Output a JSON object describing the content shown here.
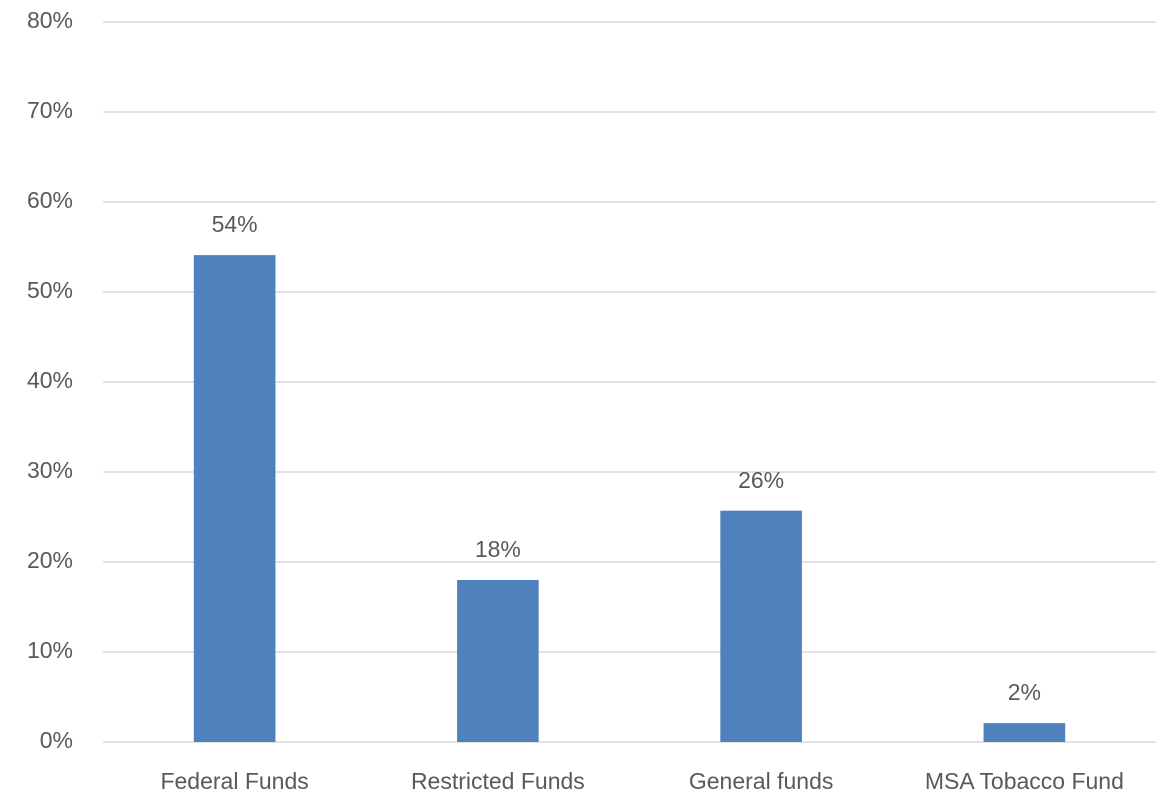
{
  "chart_data": {
    "type": "bar",
    "categories": [
      "Federal Funds",
      "Restricted Funds",
      "General funds",
      "MSA Tobacco Fund"
    ],
    "values": [
      54.1,
      18,
      25.7,
      2.1
    ],
    "value_labels": [
      "54%",
      "18%",
      "26%",
      "2%"
    ],
    "color": "#4f81bd",
    "ylim": [
      0,
      80
    ],
    "yticks": [
      {
        "value": 0,
        "label": "0%"
      },
      {
        "value": 10,
        "label": "10%"
      },
      {
        "value": 20,
        "label": "20%"
      },
      {
        "value": 30,
        "label": "30%"
      },
      {
        "value": 40,
        "label": "40%"
      },
      {
        "value": 50,
        "label": "50%"
      },
      {
        "value": 60,
        "label": "60%"
      },
      {
        "value": 70,
        "label": "70%"
      },
      {
        "value": 80,
        "label": "80%"
      }
    ],
    "grid": true
  }
}
